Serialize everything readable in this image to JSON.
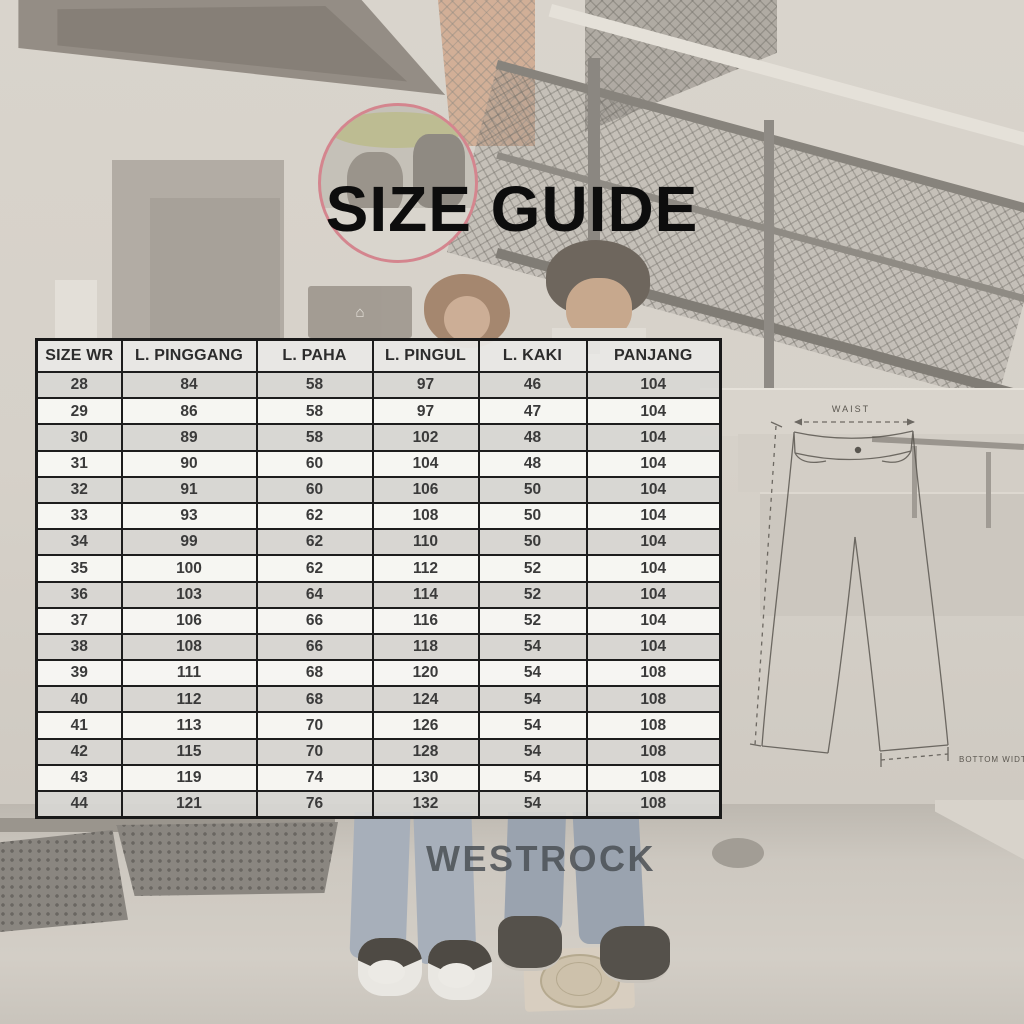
{
  "title": "SIZE GUIDE",
  "brand": "WESTROCK",
  "size_table": {
    "columns": [
      "SIZE WR",
      "L. PINGGANG",
      "L. PAHA",
      "L. PINGUL",
      "L. KAKI",
      "PANJANG"
    ],
    "rows": [
      [
        "28",
        "84",
        "58",
        "97",
        "46",
        "104"
      ],
      [
        "29",
        "86",
        "58",
        "97",
        "47",
        "104"
      ],
      [
        "30",
        "89",
        "58",
        "102",
        "48",
        "104"
      ],
      [
        "31",
        "90",
        "60",
        "104",
        "48",
        "104"
      ],
      [
        "32",
        "91",
        "60",
        "106",
        "50",
        "104"
      ],
      [
        "33",
        "93",
        "62",
        "108",
        "50",
        "104"
      ],
      [
        "34",
        "99",
        "62",
        "110",
        "50",
        "104"
      ],
      [
        "35",
        "100",
        "62",
        "112",
        "52",
        "104"
      ],
      [
        "36",
        "103",
        "64",
        "114",
        "52",
        "104"
      ],
      [
        "37",
        "106",
        "66",
        "116",
        "52",
        "104"
      ],
      [
        "38",
        "108",
        "66",
        "118",
        "54",
        "104"
      ],
      [
        "39",
        "111",
        "68",
        "120",
        "54",
        "108"
      ],
      [
        "40",
        "112",
        "68",
        "124",
        "54",
        "108"
      ],
      [
        "41",
        "113",
        "70",
        "126",
        "54",
        "108"
      ],
      [
        "42",
        "115",
        "70",
        "128",
        "54",
        "108"
      ],
      [
        "43",
        "119",
        "74",
        "130",
        "54",
        "108"
      ],
      [
        "44",
        "121",
        "76",
        "132",
        "54",
        "108"
      ]
    ]
  },
  "diagram": {
    "waist_label": "WAIST",
    "bottom_width_label": "BOTTOM WIDTH"
  },
  "icons": {
    "wall_sign_icon": "⌂"
  },
  "colors": {
    "title_text": "#0d0d0d",
    "brand_text": "#4b5055",
    "table_border": "#1d1d1d",
    "table_text": "#3a3a3a",
    "header_bg": "#e9e8e5",
    "row_gray": "#d8d7d4",
    "row_white": "#faf9f6",
    "mirror_rim": "#d4858e",
    "diagram_line": "#56524c",
    "background_wall": "#d7d2ca"
  }
}
